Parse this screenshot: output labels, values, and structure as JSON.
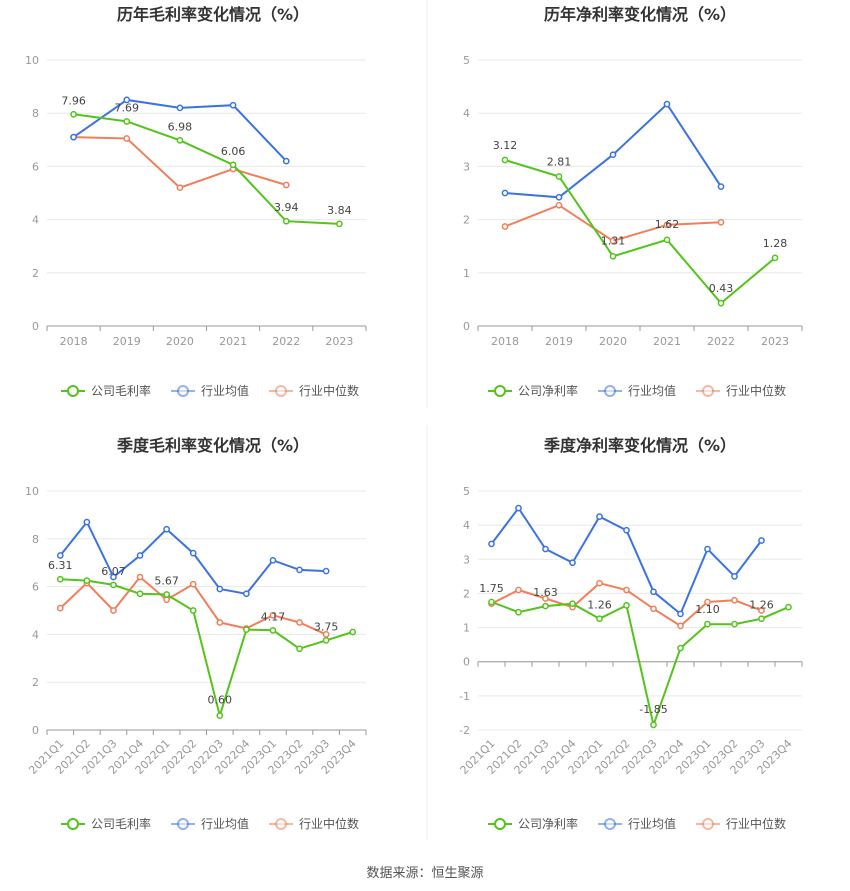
{
  "source": "数据来源：恒生聚源",
  "colors": {
    "company": "#52c41a",
    "avg": "#3b73e0",
    "median": "#f07f5a"
  },
  "chart_data": [
    {
      "type": "line",
      "title": "历年毛利率变化情况（%）",
      "categories": [
        "2018",
        "2019",
        "2020",
        "2021",
        "2022",
        "2023"
      ],
      "ylim": [
        0,
        10
      ],
      "yticks": [
        0,
        2,
        4,
        6,
        8,
        10
      ],
      "grid": true,
      "legend_position": "bottom",
      "series": [
        {
          "name": "公司毛利率",
          "key": "company",
          "values": [
            7.96,
            7.69,
            6.98,
            6.06,
            3.94,
            3.84
          ],
          "labels": [
            "7.96",
            "7.69",
            "6.98",
            "6.06",
            "3.94",
            "3.84"
          ]
        },
        {
          "name": "行业均值",
          "key": "avg",
          "values": [
            7.1,
            8.5,
            8.2,
            8.3,
            6.2,
            null
          ]
        },
        {
          "name": "行业中位数",
          "key": "median",
          "values": [
            7.1,
            7.05,
            5.2,
            5.9,
            5.3,
            null
          ]
        }
      ]
    },
    {
      "type": "line",
      "title": "历年净利率变化情况（%）",
      "categories": [
        "2018",
        "2019",
        "2020",
        "2021",
        "2022",
        "2023"
      ],
      "ylim": [
        0,
        5
      ],
      "yticks": [
        0,
        1,
        2,
        3,
        4,
        5
      ],
      "grid": true,
      "legend_position": "bottom",
      "series": [
        {
          "name": "公司净利率",
          "key": "company",
          "values": [
            3.12,
            2.81,
            1.31,
            1.62,
            0.43,
            1.28
          ],
          "labels": [
            "3.12",
            "2.81",
            "1.31",
            "1.62",
            "0.43",
            "1.28"
          ]
        },
        {
          "name": "行业均值",
          "key": "avg",
          "values": [
            2.5,
            2.42,
            3.22,
            4.17,
            2.62,
            null
          ]
        },
        {
          "name": "行业中位数",
          "key": "median",
          "values": [
            1.87,
            2.27,
            1.6,
            1.9,
            1.95,
            null
          ]
        }
      ]
    },
    {
      "type": "line",
      "title": "季度毛利率变化情况（%）",
      "categories": [
        "2021Q1",
        "2021Q2",
        "2021Q3",
        "2021Q4",
        "2022Q1",
        "2022Q2",
        "2022Q3",
        "2022Q4",
        "2023Q1",
        "2023Q2",
        "2023Q3",
        "2023Q4"
      ],
      "ylim": [
        0,
        10
      ],
      "yticks": [
        0,
        2,
        4,
        6,
        8,
        10
      ],
      "grid": true,
      "legend_position": "bottom",
      "series": [
        {
          "name": "公司毛利率",
          "key": "company",
          "values": [
            6.31,
            6.25,
            6.07,
            5.7,
            5.67,
            5.0,
            0.6,
            4.2,
            4.17,
            3.4,
            3.75,
            4.1
          ],
          "labels": [
            "6.31",
            "",
            "6.07",
            "",
            "5.67",
            "",
            "0.60",
            "",
            "4.17",
            "",
            "3.75",
            ""
          ]
        },
        {
          "name": "行业均值",
          "key": "avg",
          "values": [
            7.3,
            8.7,
            6.4,
            7.3,
            8.4,
            7.4,
            5.9,
            5.7,
            7.1,
            6.7,
            6.65,
            null
          ]
        },
        {
          "name": "行业中位数",
          "key": "median",
          "values": [
            5.1,
            6.15,
            5.0,
            6.4,
            5.45,
            6.1,
            4.5,
            4.25,
            4.8,
            4.5,
            4.0,
            null
          ]
        }
      ]
    },
    {
      "type": "line",
      "title": "季度净利率变化情况（%）",
      "categories": [
        "2021Q1",
        "2021Q2",
        "2021Q3",
        "2021Q4",
        "2022Q1",
        "2022Q2",
        "2022Q3",
        "2022Q4",
        "2023Q1",
        "2023Q2",
        "2023Q3",
        "2023Q4"
      ],
      "ylim": [
        -2,
        5
      ],
      "yticks": [
        -2,
        -1,
        0,
        1,
        2,
        3,
        4,
        5
      ],
      "grid": true,
      "legend_position": "bottom",
      "series": [
        {
          "name": "公司净利率",
          "key": "company",
          "values": [
            1.75,
            1.45,
            1.63,
            1.7,
            1.26,
            1.65,
            -1.85,
            0.4,
            1.1,
            1.1,
            1.26,
            1.6
          ],
          "labels": [
            "1.75",
            "",
            "1.63",
            "",
            "1.26",
            "",
            "-1.85",
            "",
            "1.10",
            "",
            "1.26",
            ""
          ]
        },
        {
          "name": "行业均值",
          "key": "avg",
          "values": [
            3.45,
            4.5,
            3.3,
            2.9,
            4.25,
            3.85,
            2.05,
            1.4,
            3.3,
            2.5,
            3.55,
            null
          ]
        },
        {
          "name": "行业中位数",
          "key": "median",
          "values": [
            1.7,
            2.1,
            1.85,
            1.6,
            2.3,
            2.1,
            1.55,
            1.05,
            1.75,
            1.8,
            1.5,
            null
          ]
        }
      ]
    }
  ]
}
